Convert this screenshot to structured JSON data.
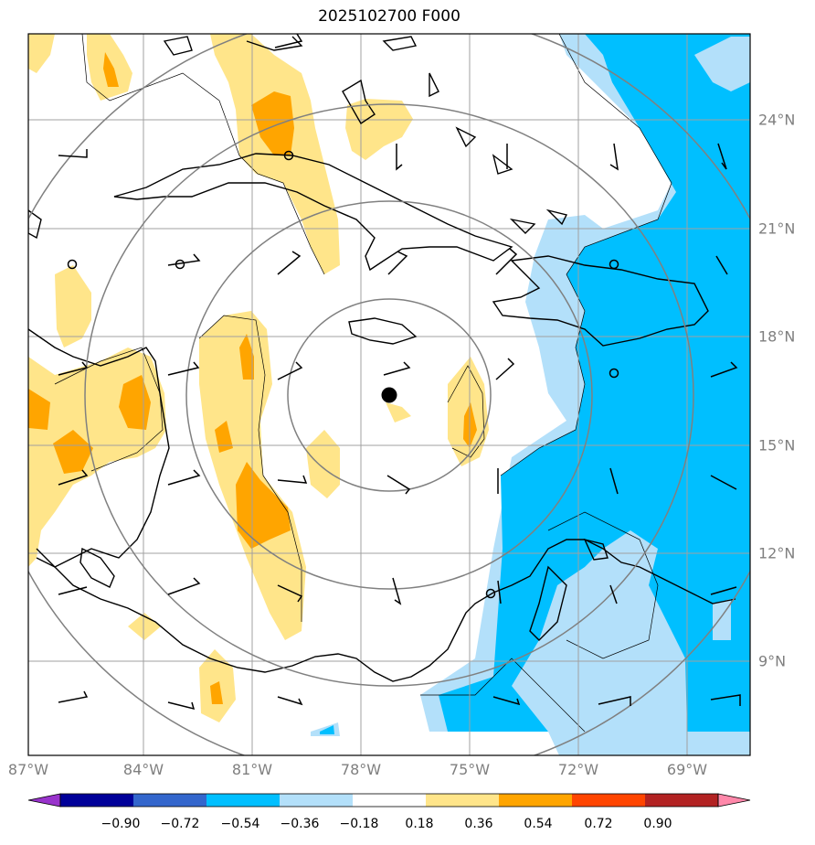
{
  "title": "2025102700 F000",
  "lon_ticks": [
    "87°W",
    "84°W",
    "81°W",
    "78°W",
    "75°W",
    "72°W",
    "69°W"
  ],
  "lat_ticks": [
    "24°N",
    "21°N",
    "18°N",
    "15°N",
    "12°N",
    "9°N"
  ],
  "colorbar": {
    "colors": [
      "#9933cc",
      "#000099",
      "#3366cc",
      "#00bfff",
      "#b3e0fa",
      "#ffffff",
      "#ffe58a",
      "#ffa500",
      "#ff4500",
      "#b22222",
      "#ff88aa"
    ],
    "labels": [
      "−0.90",
      "−0.72",
      "−0.54",
      "−0.36",
      "−0.18",
      "0.18",
      "0.36",
      "0.54",
      "0.72",
      "0.90"
    ]
  },
  "storm_center": {
    "lon": -77.2,
    "lat": 16.4
  },
  "range_rings_deg": [
    3,
    6,
    9,
    12
  ]
}
